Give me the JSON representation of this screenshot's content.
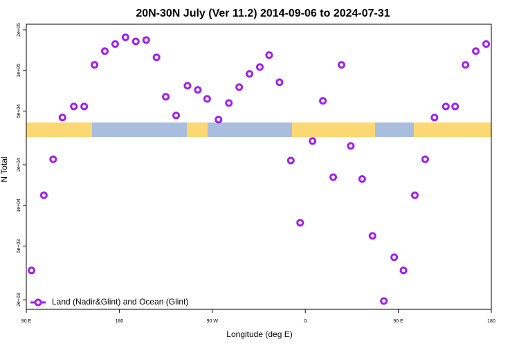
{
  "chart_data": {
    "type": "scatter",
    "title": "20N-30N July (Ver 11.2)   2014-09-06 to 2024-07-31",
    "x_label": "Longitude (deg E)",
    "y_label": "N Total",
    "log_y": true,
    "legend_position": "bottom-left",
    "xlim": [
      90,
      540
    ],
    "ylim": [
      1700,
      220000
    ],
    "xticks": [
      {
        "value": 90,
        "label": "90 E"
      },
      {
        "value": 180,
        "label": "180"
      },
      {
        "value": 270,
        "label": "90 W"
      },
      {
        "value": 360,
        "label": "0"
      },
      {
        "value": 450,
        "label": "90 E"
      },
      {
        "value": 540,
        "label": "180"
      }
    ],
    "yticks": [
      {
        "value": 2000,
        "label": "2e+03"
      },
      {
        "value": 5000,
        "label": "5e+03"
      },
      {
        "value": 10000,
        "label": "1e+04"
      },
      {
        "value": 20000,
        "label": "2e+04"
      },
      {
        "value": 50000,
        "label": "5e+04"
      },
      {
        "value": 100000,
        "label": "1e+05"
      },
      {
        "value": 200000,
        "label": "2e+05"
      }
    ],
    "series": [
      {
        "name": "Land (Nadir&Glint) and Ocean (Glint)",
        "color": "#a020f0",
        "x": [
          95,
          107,
          116,
          125,
          136,
          146,
          156,
          166,
          176,
          186,
          196,
          206,
          216,
          225,
          235,
          246,
          256,
          265,
          276,
          286,
          296,
          306,
          316,
          325,
          335,
          346,
          355,
          367,
          377,
          387,
          395,
          404,
          415,
          425,
          436,
          446,
          455,
          466,
          476,
          485,
          496,
          505,
          515,
          525,
          535
        ],
        "values": [
          3300,
          11900,
          22000,
          44800,
          54100,
          54100,
          110000,
          139000,
          157000,
          176000,
          164000,
          168000,
          125000,
          63800,
          46400,
          77100,
          71800,
          61600,
          43200,
          57400,
          75300,
          94300,
          106000,
          130000,
          81800,
          21500,
          7440,
          30000,
          59500,
          16200,
          110000,
          27600,
          15700,
          5950,
          1960,
          4130,
          3300,
          11900,
          22000,
          44800,
          54100,
          54100,
          110000,
          139000,
          157000
        ]
      }
    ]
  }
}
